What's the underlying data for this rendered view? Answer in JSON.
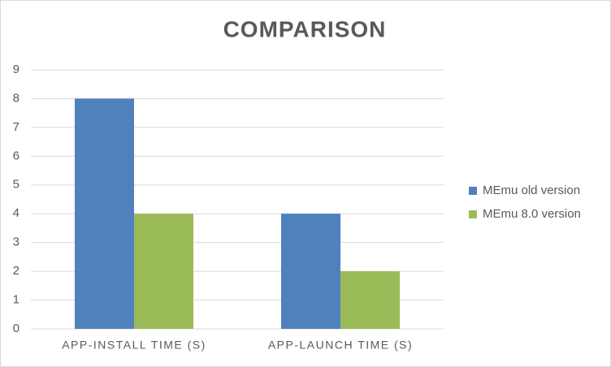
{
  "chart_data": {
    "type": "bar",
    "title": "COMPARISON",
    "categories": [
      "APP-INSTALL TIME (S)",
      "APP-LAUNCH TIME (S)"
    ],
    "series": [
      {
        "name": "MEmu old version",
        "color": "#4f81bd",
        "values": [
          8,
          4
        ]
      },
      {
        "name": "MEmu 8.0 version",
        "color": "#9bbb59",
        "values": [
          4,
          2
        ]
      }
    ],
    "ylim": [
      0,
      9
    ],
    "yticks": [
      0,
      1,
      2,
      3,
      4,
      5,
      6,
      7,
      8,
      9
    ],
    "grid": true,
    "legend": "right"
  }
}
